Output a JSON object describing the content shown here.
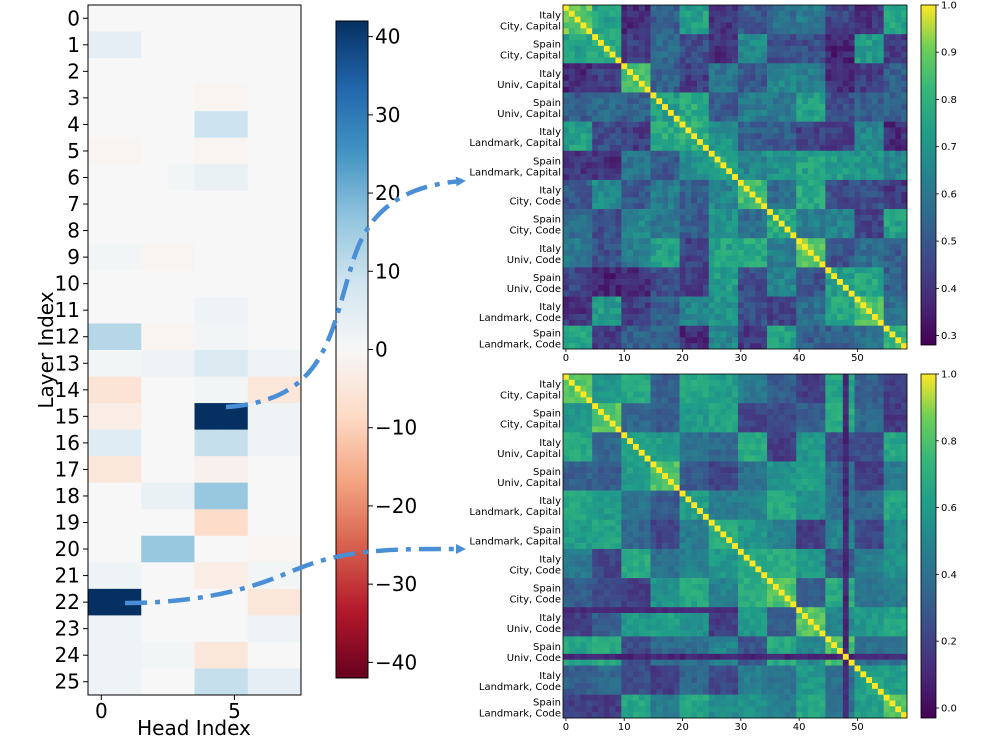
{
  "chart_data": [
    {
      "type": "heatmap",
      "name": "layer-head-heatmap",
      "xlabel": "Head Index",
      "ylabel": "Layer Index",
      "x_ticks": [
        "0",
        "5"
      ],
      "y_ticks": [
        "0",
        "1",
        "2",
        "3",
        "4",
        "5",
        "6",
        "7",
        "8",
        "9",
        "10",
        "11",
        "12",
        "13",
        "14",
        "15",
        "16",
        "17",
        "18",
        "19",
        "20",
        "21",
        "22",
        "23",
        "24",
        "25"
      ],
      "n_layers": 26,
      "n_heads": 8,
      "colormap": "RdBu",
      "vmin": -42,
      "vmax": 42,
      "colorbar_ticks": [
        "40",
        "30",
        "20",
        "10",
        "0",
        "−10",
        "−20",
        "−30",
        "−40"
      ],
      "colorbar_tick_values": [
        40,
        30,
        20,
        10,
        0,
        -10,
        -20,
        -30,
        -40
      ],
      "values": [
        [
          0,
          0,
          0,
          0,
          0,
          0,
          0,
          0
        ],
        [
          4,
          4,
          0,
          0,
          0,
          0,
          0,
          0
        ],
        [
          0,
          0,
          0,
          0,
          0,
          0,
          0,
          0
        ],
        [
          0,
          0,
          0,
          0,
          -1,
          -1,
          0,
          0
        ],
        [
          0,
          0,
          0,
          0,
          9,
          9,
          0,
          0
        ],
        [
          -1,
          -1,
          0,
          0,
          -1,
          -1,
          0,
          0
        ],
        [
          0,
          0,
          0,
          1,
          3,
          3,
          0,
          0
        ],
        [
          0,
          0,
          0,
          0,
          0,
          0,
          0,
          0
        ],
        [
          0,
          0,
          0,
          0,
          0,
          0,
          0,
          0
        ],
        [
          1,
          1,
          -1,
          -1,
          0,
          0,
          0,
          0
        ],
        [
          0,
          0,
          0,
          0,
          0,
          0,
          0,
          0
        ],
        [
          0,
          0,
          0,
          0,
          2,
          2,
          0,
          0
        ],
        [
          12,
          12,
          -1,
          -1,
          1,
          1,
          0,
          0
        ],
        [
          1,
          1,
          2,
          2,
          6,
          6,
          2,
          2
        ],
        [
          -6,
          -6,
          0,
          0,
          1,
          1,
          -5,
          -5
        ],
        [
          -3,
          -3,
          0,
          0,
          42,
          42,
          2,
          2
        ],
        [
          5,
          5,
          0,
          0,
          10,
          10,
          2,
          2
        ],
        [
          -5,
          -5,
          0,
          0,
          -2,
          -2,
          0,
          0
        ],
        [
          0,
          0,
          3,
          3,
          16,
          16,
          0,
          0
        ],
        [
          0,
          0,
          0,
          0,
          -8,
          -8,
          0,
          0
        ],
        [
          0,
          0,
          16,
          16,
          0,
          0,
          -1,
          -1
        ],
        [
          2,
          2,
          0,
          0,
          -3,
          -3,
          1,
          1
        ],
        [
          42,
          42,
          0,
          0,
          0,
          0,
          -5,
          -5
        ],
        [
          2,
          2,
          0,
          0,
          0,
          0,
          2,
          2
        ],
        [
          2,
          2,
          1,
          1,
          -5,
          -5,
          0,
          0
        ],
        [
          2,
          2,
          0,
          0,
          10,
          10,
          4,
          4
        ]
      ]
    },
    {
      "type": "heatmap",
      "name": "similarity-matrix-top",
      "colormap": "viridis",
      "vmin": 0.28,
      "vmax": 1.0,
      "n": 59,
      "x_ticks": [
        "0",
        "10",
        "20",
        "30",
        "40",
        "50"
      ],
      "x_tick_values": [
        0,
        10,
        20,
        30,
        40,
        50
      ],
      "colorbar_ticks": [
        "1.0",
        "0.9",
        "0.8",
        "0.7",
        "0.6",
        "0.5",
        "0.4",
        "0.3"
      ],
      "colorbar_tick_values": [
        1.0,
        0.9,
        0.8,
        0.7,
        0.6,
        0.5,
        0.4,
        0.3
      ],
      "group_labels": [
        [
          "Italy",
          "City, Capital"
        ],
        [
          "Spain",
          "City, Capital"
        ],
        [
          "Italy",
          "Univ, Capital"
        ],
        [
          "Spain",
          "Univ, Capital"
        ],
        [
          "Italy",
          "Landmark, Capital"
        ],
        [
          "Spain",
          "Landmark, Capital"
        ],
        [
          "Italy",
          "City, Code"
        ],
        [
          "Spain",
          "City, Code"
        ],
        [
          "Italy",
          "Univ, Code"
        ],
        [
          "Spain",
          "Univ, Code"
        ],
        [
          "Italy",
          "Landmark, Code"
        ],
        [
          "Spain",
          "Landmark, Code"
        ]
      ],
      "block_sizes": [
        5,
        5,
        5,
        5,
        5,
        5,
        5,
        5,
        5,
        5,
        5,
        4
      ],
      "diagonal_value": 1.0,
      "same_group_range": [
        0.72,
        0.9
      ],
      "off_group_range": [
        0.35,
        0.78
      ]
    },
    {
      "type": "heatmap",
      "name": "similarity-matrix-bottom",
      "colormap": "viridis",
      "vmin": -0.03,
      "vmax": 1.0,
      "n": 59,
      "x_ticks": [
        "0",
        "10",
        "20",
        "30",
        "40",
        "50"
      ],
      "x_tick_values": [
        0,
        10,
        20,
        30,
        40,
        50
      ],
      "colorbar_ticks": [
        "1.0",
        "0.8",
        "0.6",
        "0.4",
        "0.2",
        "0.0"
      ],
      "colorbar_tick_values": [
        1.0,
        0.8,
        0.6,
        0.4,
        0.2,
        0.0
      ],
      "group_labels": [
        [
          "Italy",
          "City, Capital"
        ],
        [
          "Spain",
          "City, Capital"
        ],
        [
          "Italy",
          "Univ, Capital"
        ],
        [
          "Spain",
          "Univ, Capital"
        ],
        [
          "Italy",
          "Landmark, Capital"
        ],
        [
          "Spain",
          "Landmark, Capital"
        ],
        [
          "Italy",
          "City, Code"
        ],
        [
          "Spain",
          "City, Code"
        ],
        [
          "Italy",
          "Univ, Code"
        ],
        [
          "Spain",
          "Univ, Code"
        ],
        [
          "Italy",
          "Landmark, Code"
        ],
        [
          "Spain",
          "Landmark, Code"
        ]
      ],
      "block_sizes": [
        5,
        5,
        5,
        5,
        5,
        5,
        5,
        5,
        5,
        5,
        5,
        4
      ],
      "diagonal_value": 1.0,
      "same_group_range": [
        0.6,
        0.85
      ],
      "off_group_range": [
        0.15,
        0.7
      ],
      "dark_column": 48,
      "dark_row": 40
    }
  ],
  "connectors": [
    {
      "from": "layer 15, head 5",
      "to": "similarity-matrix-top"
    },
    {
      "from": "layer 22, head 1",
      "to": "similarity-matrix-bottom"
    }
  ]
}
